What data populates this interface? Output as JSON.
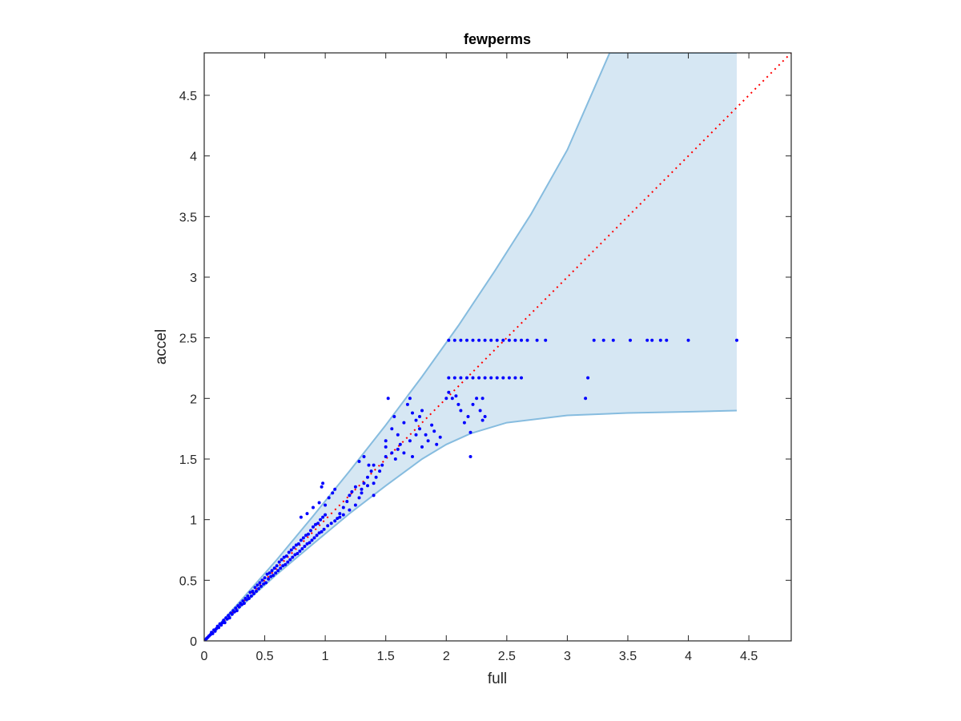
{
  "chart_data": {
    "type": "scatter",
    "title": "fewperms",
    "xlabel": "full",
    "ylabel": "accel",
    "xlim": [
      0,
      4.85
    ],
    "ylim": [
      0,
      4.85
    ],
    "xticks": [
      "0",
      "0.5",
      "1",
      "1.5",
      "2",
      "2.5",
      "3",
      "3.5",
      "4",
      "4.5"
    ],
    "yticks": [
      "0",
      "0.5",
      "1",
      "1.5",
      "2",
      "2.5",
      "3",
      "3.5",
      "4",
      "4.5"
    ],
    "grid": false,
    "colors": {
      "points": "#0000ff",
      "band_fill": "#d6e7f3",
      "band_edge": "#86bcdf",
      "reference_line": "#ff0000",
      "axes": "#262626"
    },
    "band": {
      "upper": [
        [
          0,
          0
        ],
        [
          0.3,
          0.33
        ],
        [
          0.6,
          0.67
        ],
        [
          0.9,
          1.03
        ],
        [
          1.2,
          1.4
        ],
        [
          1.5,
          1.78
        ],
        [
          1.8,
          2.18
        ],
        [
          2.1,
          2.6
        ],
        [
          2.4,
          3.05
        ],
        [
          2.7,
          3.52
        ],
        [
          3.0,
          4.05
        ],
        [
          3.35,
          4.85
        ],
        [
          4.4,
          4.85
        ]
      ],
      "lower": [
        [
          0,
          0
        ],
        [
          0.3,
          0.28
        ],
        [
          0.6,
          0.55
        ],
        [
          0.9,
          0.8
        ],
        [
          1.2,
          1.05
        ],
        [
          1.5,
          1.28
        ],
        [
          1.8,
          1.5
        ],
        [
          2.0,
          1.62
        ],
        [
          2.2,
          1.71
        ],
        [
          2.5,
          1.8
        ],
        [
          3.0,
          1.86
        ],
        [
          3.5,
          1.88
        ],
        [
          4.0,
          1.89
        ],
        [
          4.4,
          1.9
        ]
      ]
    },
    "reference_line": {
      "style": "dotted",
      "from": [
        0,
        0
      ],
      "to": [
        4.85,
        4.85
      ]
    },
    "series": [
      {
        "points": [
          [
            0.01,
            0.01
          ],
          [
            0.02,
            0.02
          ],
          [
            0.03,
            0.03
          ],
          [
            0.04,
            0.04
          ],
          [
            0.05,
            0.05
          ],
          [
            0.06,
            0.07
          ],
          [
            0.07,
            0.06
          ],
          [
            0.08,
            0.09
          ],
          [
            0.09,
            0.08
          ],
          [
            0.1,
            0.1
          ],
          [
            0.11,
            0.12
          ],
          [
            0.12,
            0.11
          ],
          [
            0.13,
            0.14
          ],
          [
            0.14,
            0.13
          ],
          [
            0.15,
            0.15
          ],
          [
            0.16,
            0.17
          ],
          [
            0.17,
            0.15
          ],
          [
            0.18,
            0.19
          ],
          [
            0.19,
            0.18
          ],
          [
            0.2,
            0.21
          ],
          [
            0.21,
            0.19
          ],
          [
            0.22,
            0.23
          ],
          [
            0.23,
            0.22
          ],
          [
            0.24,
            0.25
          ],
          [
            0.25,
            0.24
          ],
          [
            0.26,
            0.27
          ],
          [
            0.27,
            0.25
          ],
          [
            0.28,
            0.29
          ],
          [
            0.29,
            0.28
          ],
          [
            0.3,
            0.31
          ],
          [
            0.31,
            0.3
          ],
          [
            0.32,
            0.33
          ],
          [
            0.33,
            0.31
          ],
          [
            0.34,
            0.35
          ],
          [
            0.35,
            0.34
          ],
          [
            0.36,
            0.37
          ],
          [
            0.37,
            0.35
          ],
          [
            0.38,
            0.4
          ],
          [
            0.39,
            0.37
          ],
          [
            0.4,
            0.41
          ],
          [
            0.41,
            0.39
          ],
          [
            0.42,
            0.44
          ],
          [
            0.43,
            0.41
          ],
          [
            0.44,
            0.46
          ],
          [
            0.45,
            0.43
          ],
          [
            0.46,
            0.48
          ],
          [
            0.47,
            0.45
          ],
          [
            0.48,
            0.5
          ],
          [
            0.49,
            0.47
          ],
          [
            0.5,
            0.52
          ],
          [
            0.51,
            0.48
          ],
          [
            0.52,
            0.55
          ],
          [
            0.53,
            0.51
          ],
          [
            0.54,
            0.56
          ],
          [
            0.55,
            0.53
          ],
          [
            0.56,
            0.58
          ],
          [
            0.57,
            0.54
          ],
          [
            0.58,
            0.6
          ],
          [
            0.59,
            0.56
          ],
          [
            0.6,
            0.62
          ],
          [
            0.61,
            0.58
          ],
          [
            0.62,
            0.65
          ],
          [
            0.63,
            0.6
          ],
          [
            0.64,
            0.67
          ],
          [
            0.65,
            0.62
          ],
          [
            0.66,
            0.69
          ],
          [
            0.67,
            0.63
          ],
          [
            0.68,
            0.7
          ],
          [
            0.69,
            0.65
          ],
          [
            0.7,
            0.73
          ],
          [
            0.71,
            0.67
          ],
          [
            0.72,
            0.75
          ],
          [
            0.73,
            0.69
          ],
          [
            0.74,
            0.77
          ],
          [
            0.75,
            0.71
          ],
          [
            0.76,
            0.79
          ],
          [
            0.77,
            0.72
          ],
          [
            0.78,
            0.8
          ],
          [
            0.79,
            0.74
          ],
          [
            0.8,
            0.83
          ],
          [
            0.81,
            0.76
          ],
          [
            0.82,
            0.85
          ],
          [
            0.83,
            0.78
          ],
          [
            0.84,
            0.87
          ],
          [
            0.85,
            0.8
          ],
          [
            0.86,
            0.88
          ],
          [
            0.87,
            0.81
          ],
          [
            0.88,
            0.91
          ],
          [
            0.89,
            0.83
          ],
          [
            0.9,
            0.94
          ],
          [
            0.91,
            0.85
          ],
          [
            0.92,
            0.96
          ],
          [
            0.93,
            0.87
          ],
          [
            0.94,
            0.97
          ],
          [
            0.95,
            0.89
          ],
          [
            0.96,
            1.0
          ],
          [
            0.97,
            0.9
          ],
          [
            0.98,
            1.02
          ],
          [
            0.99,
            0.92
          ],
          [
            1.0,
            1.04
          ],
          [
            0.8,
            1.02
          ],
          [
            0.85,
            1.05
          ],
          [
            0.9,
            1.1
          ],
          [
            0.95,
            1.14
          ],
          [
            0.97,
            1.27
          ],
          [
            0.98,
            1.3
          ],
          [
            1.0,
            1.12
          ],
          [
            1.03,
            1.18
          ],
          [
            1.06,
            1.22
          ],
          [
            1.08,
            1.25
          ],
          [
            1.02,
            0.95
          ],
          [
            1.05,
            0.97
          ],
          [
            1.08,
            0.99
          ],
          [
            1.1,
            1.01
          ],
          [
            1.12,
            1.05
          ],
          [
            1.15,
            1.1
          ],
          [
            1.18,
            1.15
          ],
          [
            1.2,
            1.2
          ],
          [
            1.22,
            1.23
          ],
          [
            1.25,
            1.27
          ],
          [
            1.12,
            1.02
          ],
          [
            1.15,
            1.04
          ],
          [
            1.2,
            1.08
          ],
          [
            1.25,
            1.12
          ],
          [
            1.28,
            1.18
          ],
          [
            1.3,
            1.25
          ],
          [
            1.32,
            1.3
          ],
          [
            1.35,
            1.35
          ],
          [
            1.38,
            1.4
          ],
          [
            1.4,
            1.45
          ],
          [
            1.3,
            1.22
          ],
          [
            1.35,
            1.28
          ],
          [
            1.4,
            1.3
          ],
          [
            1.42,
            1.35
          ],
          [
            1.45,
            1.4
          ],
          [
            1.47,
            1.45
          ],
          [
            1.28,
            1.48
          ],
          [
            1.32,
            1.52
          ],
          [
            1.36,
            1.45
          ],
          [
            1.4,
            1.2
          ],
          [
            1.5,
            1.6
          ],
          [
            1.5,
            1.65
          ],
          [
            1.52,
            2.0
          ],
          [
            1.55,
            1.75
          ],
          [
            1.57,
            1.85
          ],
          [
            1.6,
            1.7
          ],
          [
            1.62,
            1.62
          ],
          [
            1.65,
            1.8
          ],
          [
            1.68,
            1.95
          ],
          [
            1.7,
            2.0
          ],
          [
            1.5,
            1.52
          ],
          [
            1.55,
            1.55
          ],
          [
            1.58,
            1.5
          ],
          [
            1.6,
            1.58
          ],
          [
            1.65,
            1.55
          ],
          [
            1.7,
            1.65
          ],
          [
            1.72,
            1.52
          ],
          [
            1.75,
            1.7
          ],
          [
            1.78,
            1.75
          ],
          [
            1.8,
            1.6
          ],
          [
            1.72,
            1.88
          ],
          [
            1.75,
            1.82
          ],
          [
            1.78,
            1.85
          ],
          [
            1.8,
            1.9
          ],
          [
            1.83,
            1.7
          ],
          [
            1.85,
            1.65
          ],
          [
            1.88,
            1.78
          ],
          [
            1.9,
            1.73
          ],
          [
            1.92,
            1.62
          ],
          [
            1.95,
            1.68
          ],
          [
            2.0,
            2.0
          ],
          [
            2.02,
            2.05
          ],
          [
            2.05,
            2.0
          ],
          [
            2.08,
            2.02
          ],
          [
            2.1,
            1.95
          ],
          [
            2.12,
            1.9
          ],
          [
            2.15,
            1.8
          ],
          [
            2.18,
            1.85
          ],
          [
            2.2,
            1.72
          ],
          [
            2.22,
            1.95
          ],
          [
            2.25,
            2.0
          ],
          [
            2.28,
            1.9
          ],
          [
            2.3,
            1.82
          ],
          [
            2.2,
            1.52
          ],
          [
            2.32,
            1.85
          ],
          [
            2.3,
            2.0
          ],
          [
            2.02,
            2.17
          ],
          [
            2.07,
            2.17
          ],
          [
            2.12,
            2.17
          ],
          [
            2.17,
            2.17
          ],
          [
            2.22,
            2.17
          ],
          [
            2.27,
            2.17
          ],
          [
            2.32,
            2.17
          ],
          [
            2.37,
            2.17
          ],
          [
            2.42,
            2.17
          ],
          [
            2.47,
            2.17
          ],
          [
            2.52,
            2.17
          ],
          [
            2.57,
            2.17
          ],
          [
            2.62,
            2.17
          ],
          [
            3.17,
            2.17
          ],
          [
            2.02,
            2.48
          ],
          [
            2.07,
            2.48
          ],
          [
            2.12,
            2.48
          ],
          [
            2.17,
            2.48
          ],
          [
            2.22,
            2.48
          ],
          [
            2.27,
            2.48
          ],
          [
            2.32,
            2.48
          ],
          [
            2.37,
            2.48
          ],
          [
            2.42,
            2.48
          ],
          [
            2.47,
            2.48
          ],
          [
            2.52,
            2.48
          ],
          [
            2.57,
            2.48
          ],
          [
            2.62,
            2.48
          ],
          [
            2.67,
            2.48
          ],
          [
            2.75,
            2.48
          ],
          [
            2.82,
            2.48
          ],
          [
            3.22,
            2.48
          ],
          [
            3.3,
            2.48
          ],
          [
            3.38,
            2.48
          ],
          [
            3.52,
            2.48
          ],
          [
            3.66,
            2.48
          ],
          [
            3.7,
            2.48
          ],
          [
            3.77,
            2.48
          ],
          [
            3.82,
            2.48
          ],
          [
            4.0,
            2.48
          ],
          [
            4.4,
            2.48
          ],
          [
            3.15,
            2.0
          ]
        ]
      }
    ]
  }
}
